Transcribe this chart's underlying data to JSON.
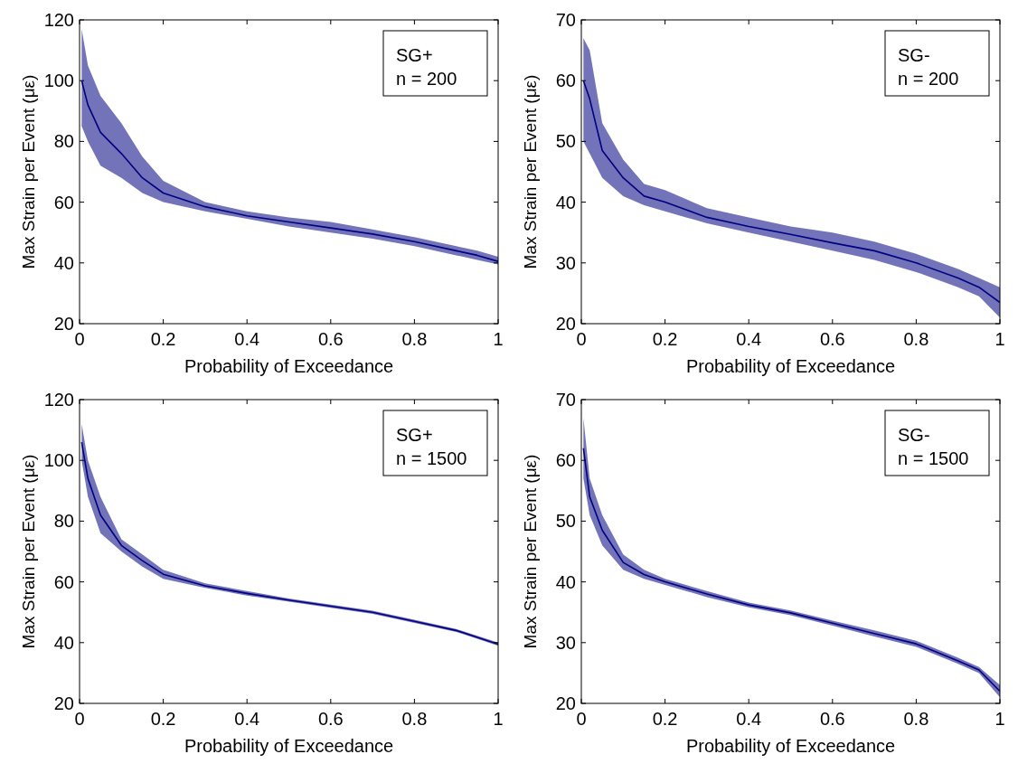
{
  "chart_data": [
    {
      "type": "line",
      "xlabel": "Probability of Exceedance",
      "ylabel": "Max Strain per Event (με)",
      "xlim": [
        0,
        1
      ],
      "xticks": [
        0,
        0.2,
        0.4,
        0.6,
        0.8,
        1
      ],
      "ylim": [
        20,
        120
      ],
      "yticks": [
        20,
        40,
        60,
        80,
        100,
        120
      ],
      "annotations": [
        "SG+",
        "n = 200"
      ],
      "x": [
        0.005,
        0.02,
        0.05,
        0.1,
        0.15,
        0.2,
        0.3,
        0.4,
        0.5,
        0.6,
        0.7,
        0.8,
        0.9,
        0.95,
        1
      ],
      "series": [
        {
          "color": "#000080",
          "values": [
            100,
            92,
            83,
            76,
            68,
            63,
            58.5,
            55.5,
            53.5,
            51.5,
            49.5,
            47,
            44,
            42.5,
            40.5
          ],
          "lower": [
            85,
            80,
            72,
            68,
            63,
            60,
            57,
            54.5,
            52,
            50,
            48,
            45.5,
            42.5,
            41,
            39.5
          ],
          "upper": [
            117,
            105,
            95,
            86,
            75,
            67,
            60,
            57,
            55,
            53.5,
            51,
            48.5,
            45.5,
            44,
            42
          ]
        }
      ]
    },
    {
      "type": "line",
      "xlabel": "Probability of Exceedance",
      "ylabel": "Max Strain per Event (με)",
      "xlim": [
        0,
        1
      ],
      "xticks": [
        0,
        0.2,
        0.4,
        0.6,
        0.8,
        1
      ],
      "ylim": [
        20,
        70
      ],
      "yticks": [
        20,
        30,
        40,
        50,
        60,
        70
      ],
      "annotations": [
        "SG-",
        "n = 200"
      ],
      "x": [
        0.005,
        0.02,
        0.05,
        0.1,
        0.15,
        0.2,
        0.3,
        0.4,
        0.5,
        0.6,
        0.7,
        0.8,
        0.9,
        0.95,
        1
      ],
      "series": [
        {
          "color": "#000080",
          "values": [
            60,
            57,
            48.5,
            44,
            41,
            40,
            37.5,
            36,
            34.7,
            33.3,
            32,
            30,
            27.5,
            26,
            23.5
          ],
          "lower": [
            50,
            48,
            44,
            41,
            39.5,
            38.5,
            36.5,
            35,
            33.5,
            32,
            30.5,
            28.5,
            26,
            24.5,
            21
          ],
          "upper": [
            67,
            65,
            53,
            47,
            43,
            42,
            39,
            37.5,
            36,
            35,
            33.5,
            31.5,
            29,
            27.5,
            26
          ]
        }
      ]
    },
    {
      "type": "line",
      "xlabel": "Probability of Exceedance",
      "ylabel": "Max Strain per Event (με)",
      "xlim": [
        0,
        1
      ],
      "xticks": [
        0,
        0.2,
        0.4,
        0.6,
        0.8,
        1
      ],
      "ylim": [
        20,
        120
      ],
      "yticks": [
        20,
        40,
        60,
        80,
        100,
        120
      ],
      "annotations": [
        "SG+",
        "n = 1500"
      ],
      "x": [
        0.005,
        0.02,
        0.05,
        0.1,
        0.15,
        0.2,
        0.3,
        0.4,
        0.5,
        0.6,
        0.7,
        0.8,
        0.9,
        1
      ],
      "series": [
        {
          "color": "#000080",
          "values": [
            106,
            94,
            82,
            72,
            67,
            62.5,
            58.7,
            56.2,
            54,
            52,
            50,
            47,
            44,
            39.5
          ],
          "lower": [
            100,
            88,
            76,
            70,
            65,
            61,
            58,
            55.5,
            53.5,
            51.5,
            49.5,
            46.5,
            43.5,
            39
          ],
          "upper": [
            112,
            100,
            88,
            74,
            69,
            64,
            59.5,
            57,
            54.5,
            52.5,
            50.5,
            47.5,
            44.5,
            40
          ]
        }
      ]
    },
    {
      "type": "line",
      "xlabel": "Probability of Exceedance",
      "ylabel": "Max Strain per Event (με)",
      "xlim": [
        0,
        1
      ],
      "xticks": [
        0,
        0.2,
        0.4,
        0.6,
        0.8,
        1
      ],
      "ylim": [
        20,
        70
      ],
      "yticks": [
        20,
        30,
        40,
        50,
        60,
        70
      ],
      "annotations": [
        "SG-",
        "n = 1500"
      ],
      "x": [
        0.005,
        0.02,
        0.05,
        0.1,
        0.15,
        0.2,
        0.3,
        0.4,
        0.5,
        0.6,
        0.7,
        0.8,
        0.9,
        0.95,
        1
      ],
      "series": [
        {
          "color": "#000080",
          "values": [
            62,
            54,
            48.5,
            43.2,
            41.2,
            40,
            38,
            36.2,
            34.9,
            33.2,
            31.5,
            29.8,
            27,
            25.5,
            22
          ],
          "lower": [
            57,
            51,
            46,
            42,
            40.5,
            39.5,
            37.5,
            35.8,
            34.5,
            32.8,
            31,
            29.3,
            26.5,
            25,
            21
          ],
          "upper": [
            67,
            57,
            51,
            44.5,
            42,
            40.5,
            38.5,
            36.6,
            35.3,
            33.6,
            32,
            30.3,
            27.5,
            26,
            23
          ]
        }
      ]
    }
  ]
}
